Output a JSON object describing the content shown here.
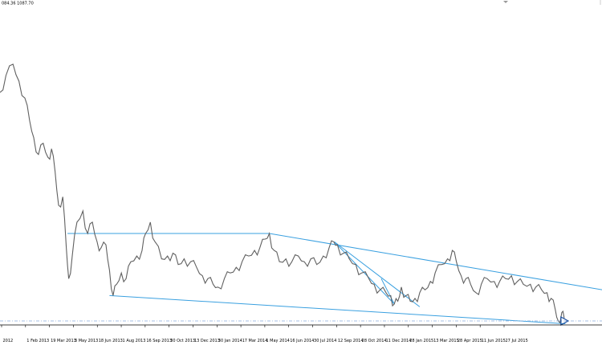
{
  "header": {
    "quote_text": "084.36 1087.70"
  },
  "chart_data": {
    "type": "line",
    "title": "",
    "xlabel": "",
    "ylabel": "",
    "grid": false,
    "x_tick_labels": [
      "2012",
      "1 Feb 2013",
      "19 Mar 2013",
      "3 May 2013",
      "18 Jun 2013",
      "1 Aug 2013",
      "16 Sep 2013",
      "30 Oct 2013",
      "13 Dec 2013",
      "30 Jan 2014",
      "17 Mar 2014",
      "1 May 2014",
      "16 Jun 2014",
      "30 Jul 2014",
      "12 Sep 2014",
      "28 Oct 2014",
      "11 Dec 2014",
      "28 Jan 2015",
      "13 Mar 2015",
      "28 Apr 2015",
      "11 Jun 2015",
      "27 Jul 2015"
    ],
    "price_series": {
      "color": "#606060",
      "points": [
        [
          "2012-12-17",
          80
        ],
        [
          "2012-12-27",
          86
        ],
        [
          "2013-01-08",
          90
        ],
        [
          "2013-01-18",
          84
        ],
        [
          "2013-01-28",
          78
        ],
        [
          "2013-02-05",
          70
        ],
        [
          "2013-02-12",
          64
        ],
        [
          "2013-02-20",
          58
        ],
        [
          "2013-02-28",
          62
        ],
        [
          "2013-03-08",
          57
        ],
        [
          "2013-03-14",
          60
        ],
        [
          "2013-03-20",
          52
        ],
        [
          "2013-03-26",
          40
        ],
        [
          "2013-04-02",
          43
        ],
        [
          "2013-04-08",
          25
        ],
        [
          "2013-04-12",
          14
        ],
        [
          "2013-04-18",
          22
        ],
        [
          "2013-04-26",
          34
        ],
        [
          "2013-05-06",
          38
        ],
        [
          "2013-05-14",
          30
        ],
        [
          "2013-05-22",
          34
        ],
        [
          "2013-05-30",
          27
        ],
        [
          "2013-06-06",
          25
        ],
        [
          "2013-06-14",
          26
        ],
        [
          "2013-06-20",
          17
        ],
        [
          "2013-06-26",
          8
        ],
        [
          "2013-07-02",
          12
        ],
        [
          "2013-07-10",
          16
        ],
        [
          "2013-07-18",
          14
        ],
        [
          "2013-07-26",
          20
        ],
        [
          "2013-08-05",
          22
        ],
        [
          "2013-08-14",
          24
        ],
        [
          "2013-08-20",
          30
        ],
        [
          "2013-08-28",
          34
        ],
        [
          "2013-09-05",
          27
        ],
        [
          "2013-09-16",
          21
        ],
        [
          "2013-09-26",
          22
        ],
        [
          "2013-10-05",
          23
        ],
        [
          "2013-10-14",
          19
        ],
        [
          "2013-10-24",
          21
        ],
        [
          "2013-11-04",
          20
        ],
        [
          "2013-11-14",
          18
        ],
        [
          "2013-11-24",
          15
        ],
        [
          "2013-12-03",
          14
        ],
        [
          "2013-12-12",
          12
        ],
        [
          "2013-12-20",
          11
        ],
        [
          "2013-12-31",
          14
        ],
        [
          "2014-01-10",
          16
        ],
        [
          "2014-01-20",
          18
        ],
        [
          "2014-01-30",
          20
        ],
        [
          "2014-02-10",
          22
        ],
        [
          "2014-02-20",
          24
        ],
        [
          "2014-03-01",
          25
        ],
        [
          "2014-03-10",
          28
        ],
        [
          "2014-03-17",
          30
        ],
        [
          "2014-03-25",
          24
        ],
        [
          "2014-04-03",
          20
        ],
        [
          "2014-04-14",
          21
        ],
        [
          "2014-04-24",
          20
        ],
        [
          "2014-05-05",
          22
        ],
        [
          "2014-05-15",
          20
        ],
        [
          "2014-05-26",
          21
        ],
        [
          "2014-06-05",
          19
        ],
        [
          "2014-06-16",
          22
        ],
        [
          "2014-06-26",
          25
        ],
        [
          "2014-07-04",
          27
        ],
        [
          "2014-07-10",
          26
        ],
        [
          "2014-07-20",
          23
        ],
        [
          "2014-07-30",
          21
        ],
        [
          "2014-08-10",
          19
        ],
        [
          "2014-08-20",
          16
        ],
        [
          "2014-09-01",
          14
        ],
        [
          "2014-09-10",
          12
        ],
        [
          "2014-09-20",
          10
        ],
        [
          "2014-09-30",
          9
        ],
        [
          "2014-10-08",
          8
        ],
        [
          "2014-10-14",
          5
        ],
        [
          "2014-10-20",
          6
        ],
        [
          "2014-10-26",
          11
        ],
        [
          "2014-11-03",
          8
        ],
        [
          "2014-11-10",
          6
        ],
        [
          "2014-11-18",
          7
        ],
        [
          "2014-11-26",
          9
        ],
        [
          "2014-12-05",
          10
        ],
        [
          "2014-12-14",
          13
        ],
        [
          "2014-12-22",
          16
        ],
        [
          "2015-01-02",
          19
        ],
        [
          "2015-01-12",
          21
        ],
        [
          "2015-01-20",
          24
        ],
        [
          "2015-01-27",
          20
        ],
        [
          "2015-02-04",
          15
        ],
        [
          "2015-02-12",
          14
        ],
        [
          "2015-02-20",
          12
        ],
        [
          "2015-03-01",
          9
        ],
        [
          "2015-03-10",
          12
        ],
        [
          "2015-03-20",
          14
        ],
        [
          "2015-04-01",
          13
        ],
        [
          "2015-04-10",
          13
        ],
        [
          "2015-04-20",
          14
        ],
        [
          "2015-04-30",
          15
        ],
        [
          "2015-05-10",
          13
        ],
        [
          "2015-05-20",
          12
        ],
        [
          "2015-06-01",
          12
        ],
        [
          "2015-06-10",
          11
        ],
        [
          "2015-06-20",
          10
        ],
        [
          "2015-06-29",
          9
        ],
        [
          "2015-07-06",
          7
        ],
        [
          "2015-07-13",
          3
        ],
        [
          "2015-07-18",
          -1
        ],
        [
          "2015-07-24",
          2
        ],
        [
          "2015-07-28",
          0
        ]
      ]
    },
    "trend_lines": [
      {
        "color": "#3aa0e0",
        "points": [
          [
            "2013-04-10",
            30
          ],
          [
            "2014-03-17",
            30
          ],
          [
            "2015-10-01",
            10
          ]
        ]
      },
      {
        "color": "#3aa0e0",
        "points": [
          [
            "2013-06-20",
            8
          ],
          [
            "2015-07-30",
            -2
          ]
        ]
      },
      {
        "color": "#3aa0e0",
        "points": [
          [
            "2014-07-05",
            27
          ],
          [
            "2014-10-14",
            5
          ]
        ]
      },
      {
        "color": "#3aa0e0",
        "points": [
          [
            "2014-07-05",
            27
          ],
          [
            "2014-11-26",
            4
          ]
        ]
      },
      {
        "color": "#3aa0e0",
        "points": [
          [
            "2014-09-22",
            14
          ],
          [
            "2014-10-14",
            5
          ]
        ]
      }
    ],
    "horizontal_lines": [
      {
        "color": "#88aadd",
        "style": "dash-dot",
        "value": -1
      }
    ],
    "end_marker": {
      "color": "#1a4fa0",
      "shape": "triangle-right",
      "point": [
        "2015-07-28",
        -1
      ]
    }
  }
}
